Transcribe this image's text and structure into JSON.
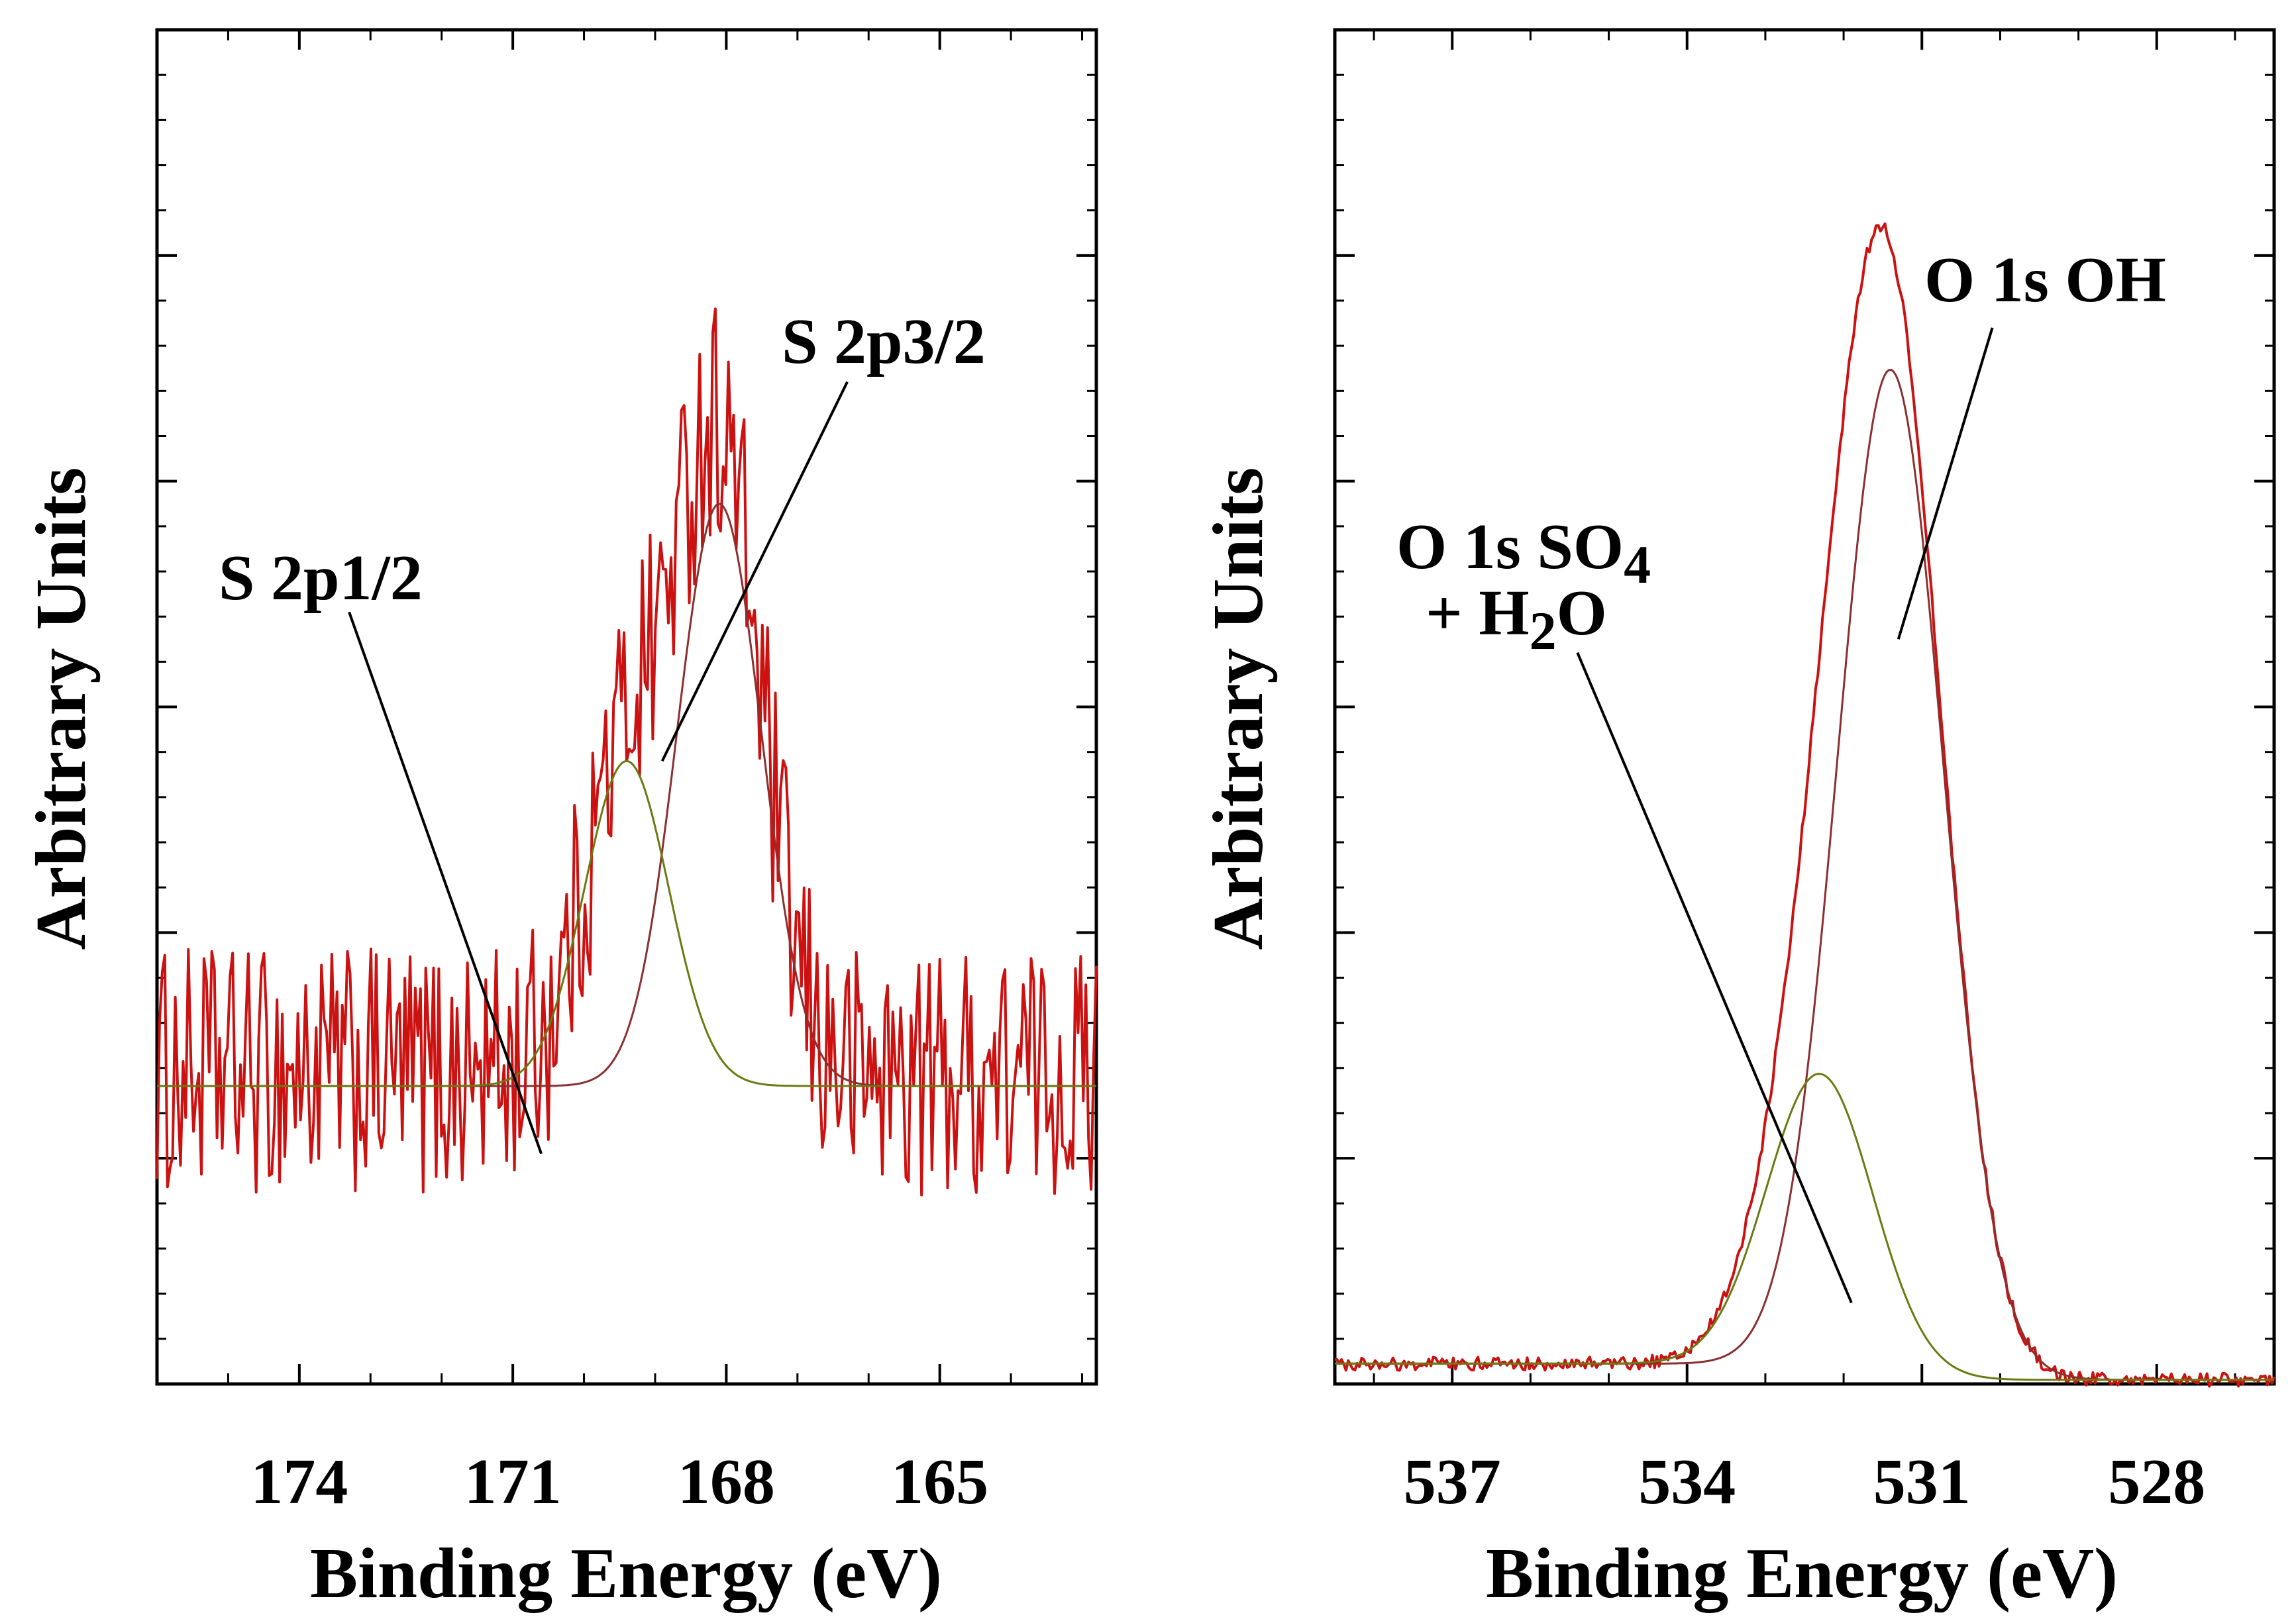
{
  "chart_data": [
    {
      "type": "line",
      "panel": "left",
      "xlabel": "Binding Energy (eV)",
      "ylabel": "Arbitrary Units",
      "xlim": [
        176.0,
        162.8
      ],
      "ylim": [
        0,
        100
      ],
      "x_reversed": true,
      "x_ticks": [
        174,
        171,
        168,
        165
      ],
      "x_tick_labels": [
        "174",
        "171",
        "168",
        "165"
      ],
      "y_ticks_unlabeled": true,
      "grid": false,
      "series": [
        {
          "name": "measured spectrum",
          "style": "noisy",
          "color": "#cc1111",
          "baseline": 23,
          "noise": 8,
          "peaks": [
            {
              "center": 168.1,
              "height": 46,
              "fwhm": 1.4
            },
            {
              "center": 169.4,
              "height": 23,
              "fwhm": 1.4
            }
          ]
        },
        {
          "name": "S 2p3/2 fit",
          "style": "smooth",
          "color": "#8b2f2f",
          "baseline": 22,
          "peaks": [
            {
              "center": 168.1,
              "height": 43,
              "fwhm": 1.4
            }
          ]
        },
        {
          "name": "S 2p1/2 fit",
          "style": "smooth",
          "color": "#6a7a10",
          "baseline": 22,
          "peaks": [
            {
              "center": 169.4,
              "height": 24,
              "fwhm": 1.4
            }
          ]
        }
      ],
      "annotations": [
        {
          "text": "S 2p3/2",
          "label_xy": [
            167.1,
            78
          ],
          "line_from": [
            166.3,
            74
          ],
          "line_to": [
            168.9,
            46
          ]
        },
        {
          "text": "S 2p1/2",
          "label_xy": [
            172.9,
            59
          ],
          "line_from": [
            173.3,
            57
          ],
          "line_to": [
            170.6,
            17
          ]
        }
      ]
    },
    {
      "type": "line",
      "panel": "right",
      "xlabel": "Binding Energy (eV)",
      "ylabel": "Arbitrary Units",
      "xlim": [
        538.5,
        526.5
      ],
      "ylim": [
        0,
        100
      ],
      "x_reversed": true,
      "x_ticks": [
        537,
        534,
        531,
        528
      ],
      "x_tick_labels": [
        "537",
        "534",
        "531",
        "528"
      ],
      "y_ticks_unlabeled": true,
      "grid": false,
      "series": [
        {
          "name": "measured spectrum",
          "style": "slightly-noisy",
          "color": "#cc1111",
          "baseline_left": 1.5,
          "baseline_right": 0.3,
          "noise": 0.5,
          "peaks": [
            {
              "center": 531.4,
              "height": 74,
              "fwhm": 1.6
            },
            {
              "center": 532.3,
              "height": 22,
              "fwhm": 1.6
            }
          ]
        },
        {
          "name": "O 1s OH fit",
          "style": "smooth",
          "color": "#8b2f2f",
          "baseline_left": 1.5,
          "baseline_right": 0.3,
          "peaks": [
            {
              "center": 531.4,
              "height": 74,
              "fwhm": 1.6
            }
          ]
        },
        {
          "name": "O 1s SO4 + H2O fit",
          "style": "smooth",
          "color": "#6a7a10",
          "baseline_left": 1.5,
          "baseline_right": 0.3,
          "peaks": [
            {
              "center": 532.3,
              "height": 22,
              "fwhm": 1.6
            }
          ]
        }
      ],
      "annotations": [
        {
          "text": "O 1s OH",
          "label_xy": [
            530.8,
            82
          ],
          "line_from": [
            530.1,
            78
          ],
          "line_to": [
            531.3,
            55
          ]
        },
        {
          "text": "O 1s SO4 + H2O",
          "label_xy": [
            535.9,
            59
          ],
          "line_from": [
            535.4,
            54
          ],
          "line_to": [
            531.9,
            6
          ]
        }
      ]
    }
  ],
  "labels": {
    "left": {
      "ylabel": "Arbitrary Units",
      "xlabel": "Binding Energy (eV)",
      "s2p32": "S 2p3/2",
      "s2p12": "S 2p1/2"
    },
    "right": {
      "ylabel": "Arbitrary Units",
      "xlabel": "Binding Energy (eV)",
      "oh": "O 1s OH",
      "so4_main": "O 1s SO",
      "so4_sub": "4",
      "h2o_pre": "+ H",
      "h2o_sub": "2",
      "h2o_post": "O"
    }
  }
}
